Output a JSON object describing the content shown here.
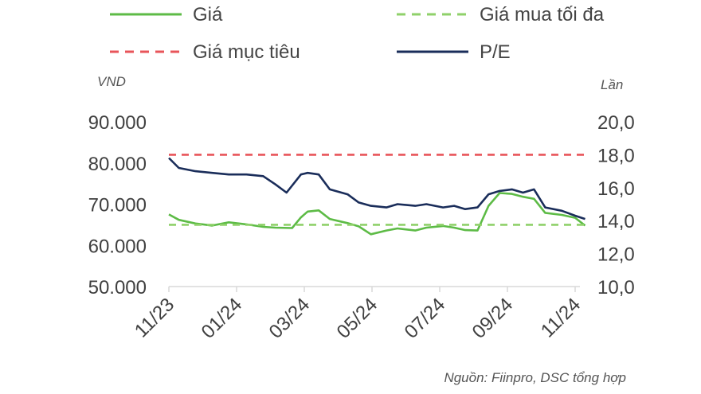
{
  "chart_data": {
    "type": "line",
    "x_start": "2023-11",
    "x_end": "2024-11",
    "x_ticks": [
      "11/23",
      "01/24",
      "03/24",
      "05/24",
      "07/24",
      "09/24",
      "11/24"
    ],
    "left_axis": {
      "unit": "VND",
      "ylim": [
        50000,
        90000
      ],
      "ticks": [
        "50.000",
        "60.000",
        "70.000",
        "80.000",
        "90.000"
      ]
    },
    "right_axis": {
      "unit": "Lần",
      "ylim": [
        10,
        20
      ],
      "ticks": [
        "10,0",
        "12,0",
        "14,0",
        "16,0",
        "18,0",
        "20,0"
      ]
    },
    "grid": false,
    "legend": {
      "placement": "top"
    },
    "series": [
      {
        "name": "Giá",
        "axis": "left",
        "color": "#5dbb46",
        "style": "solid",
        "points": [
          [
            "2023-11-01",
            67500
          ],
          [
            "2023-11-10",
            66200
          ],
          [
            "2023-11-25",
            65300
          ],
          [
            "2023-12-10",
            64800
          ],
          [
            "2023-12-25",
            65600
          ],
          [
            "2024-01-10",
            65100
          ],
          [
            "2024-01-25",
            64500
          ],
          [
            "2024-02-05",
            64300
          ],
          [
            "2024-02-20",
            64200
          ],
          [
            "2024-02-28",
            66800
          ],
          [
            "2024-03-05",
            68200
          ],
          [
            "2024-03-15",
            68500
          ],
          [
            "2024-03-25",
            66400
          ],
          [
            "2024-04-10",
            65400
          ],
          [
            "2024-04-20",
            64600
          ],
          [
            "2024-05-01",
            62700
          ],
          [
            "2024-05-15",
            63600
          ],
          [
            "2024-05-25",
            64100
          ],
          [
            "2024-06-10",
            63600
          ],
          [
            "2024-06-20",
            64300
          ],
          [
            "2024-07-05",
            64700
          ],
          [
            "2024-07-15",
            64300
          ],
          [
            "2024-07-25",
            63700
          ],
          [
            "2024-08-05",
            63600
          ],
          [
            "2024-08-15",
            69600
          ],
          [
            "2024-08-25",
            72700
          ],
          [
            "2024-09-05",
            72500
          ],
          [
            "2024-09-15",
            71800
          ],
          [
            "2024-09-25",
            71300
          ],
          [
            "2024-10-05",
            67900
          ],
          [
            "2024-10-20",
            67400
          ],
          [
            "2024-11-01",
            66700
          ],
          [
            "2024-11-10",
            64800
          ]
        ]
      },
      {
        "name": "Giá mua tối đa",
        "axis": "left",
        "color": "#8fd16a",
        "style": "dashed",
        "points": [
          [
            "2023-11-01",
            65000
          ],
          [
            "2024-11-10",
            65000
          ]
        ]
      },
      {
        "name": "Giá mục tiêu",
        "axis": "left",
        "color": "#e8555a",
        "style": "dashed",
        "points": [
          [
            "2023-11-01",
            82000
          ],
          [
            "2024-11-10",
            82000
          ]
        ]
      },
      {
        "name": "P/E",
        "axis": "right",
        "color": "#1a2d5a",
        "style": "solid",
        "points": [
          [
            "2023-11-01",
            17.8
          ],
          [
            "2023-11-10",
            17.2
          ],
          [
            "2023-11-25",
            17.0
          ],
          [
            "2023-12-10",
            16.9
          ],
          [
            "2023-12-25",
            16.8
          ],
          [
            "2024-01-10",
            16.8
          ],
          [
            "2024-01-25",
            16.7
          ],
          [
            "2024-02-05",
            16.2
          ],
          [
            "2024-02-15",
            15.7
          ],
          [
            "2024-02-28",
            16.8
          ],
          [
            "2024-03-05",
            16.9
          ],
          [
            "2024-03-15",
            16.8
          ],
          [
            "2024-03-25",
            15.9
          ],
          [
            "2024-04-10",
            15.6
          ],
          [
            "2024-04-20",
            15.1
          ],
          [
            "2024-05-01",
            14.9
          ],
          [
            "2024-05-15",
            14.8
          ],
          [
            "2024-05-25",
            15.0
          ],
          [
            "2024-06-10",
            14.9
          ],
          [
            "2024-06-20",
            15.0
          ],
          [
            "2024-07-05",
            14.8
          ],
          [
            "2024-07-15",
            14.9
          ],
          [
            "2024-07-25",
            14.7
          ],
          [
            "2024-08-05",
            14.8
          ],
          [
            "2024-08-15",
            15.6
          ],
          [
            "2024-08-25",
            15.8
          ],
          [
            "2024-09-05",
            15.9
          ],
          [
            "2024-09-15",
            15.7
          ],
          [
            "2024-09-25",
            15.9
          ],
          [
            "2024-10-05",
            14.8
          ],
          [
            "2024-10-20",
            14.6
          ],
          [
            "2024-11-01",
            14.3
          ],
          [
            "2024-11-10",
            14.1
          ]
        ]
      }
    ],
    "source": "Nguồn: Fiinpro, DSC tổng hợp"
  }
}
